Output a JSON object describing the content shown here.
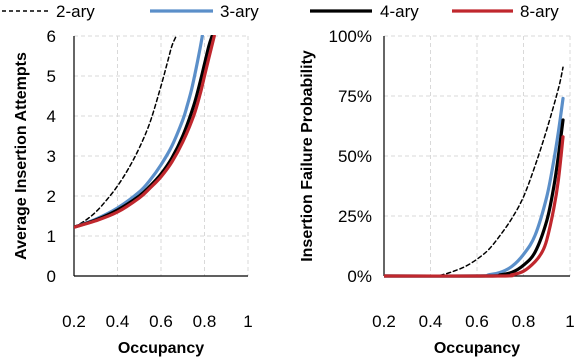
{
  "legend": [
    {
      "name": "2-ary",
      "color": "#000000",
      "dash": true
    },
    {
      "name": "3-ary",
      "color": "#5B8FC9",
      "dash": false
    },
    {
      "name": "4-ary",
      "color": "#000000",
      "dash": false
    },
    {
      "name": "8-ary",
      "color": "#C0272D",
      "dash": false
    }
  ],
  "chart_data": [
    {
      "type": "line",
      "xlabel": "Occupancy",
      "ylabel": "Average Insertion Attempts",
      "xlim": [
        0.2,
        1
      ],
      "ylim": [
        0,
        6
      ],
      "x_ticks": [
        "0.2",
        "0.4",
        "0.6",
        "0.8",
        "1"
      ],
      "y_ticks": [
        "0",
        "1",
        "2",
        "3",
        "4",
        "5",
        "6"
      ],
      "grid": true,
      "series": [
        {
          "name": "2-ary",
          "x": [
            0.2,
            0.25,
            0.3,
            0.35,
            0.4,
            0.45,
            0.5,
            0.55,
            0.6,
            0.63,
            0.65,
            0.67
          ],
          "y": [
            1.22,
            1.38,
            1.6,
            1.9,
            2.25,
            2.68,
            3.2,
            3.85,
            4.75,
            5.35,
            5.75,
            6.0
          ]
        },
        {
          "name": "3-ary",
          "x": [
            0.2,
            0.3,
            0.4,
            0.5,
            0.55,
            0.6,
            0.65,
            0.7,
            0.72,
            0.74,
            0.76,
            0.78,
            0.79
          ],
          "y": [
            1.22,
            1.42,
            1.7,
            2.1,
            2.4,
            2.78,
            3.25,
            3.9,
            4.25,
            4.65,
            5.15,
            5.7,
            6.0
          ]
        },
        {
          "name": "4-ary",
          "x": [
            0.2,
            0.3,
            0.4,
            0.5,
            0.55,
            0.6,
            0.65,
            0.7,
            0.75,
            0.78,
            0.8,
            0.82,
            0.835
          ],
          "y": [
            1.22,
            1.4,
            1.65,
            2.0,
            2.25,
            2.55,
            2.95,
            3.5,
            4.25,
            4.85,
            5.3,
            5.75,
            6.0
          ]
        },
        {
          "name": "8-ary",
          "x": [
            0.2,
            0.3,
            0.4,
            0.5,
            0.55,
            0.6,
            0.65,
            0.7,
            0.75,
            0.78,
            0.8,
            0.82,
            0.845
          ],
          "y": [
            1.22,
            1.38,
            1.6,
            1.95,
            2.2,
            2.48,
            2.85,
            3.35,
            4.0,
            4.55,
            5.0,
            5.45,
            6.0
          ]
        }
      ]
    },
    {
      "type": "line",
      "xlabel": "Occupancy",
      "ylabel": "Insertion Failure Probability",
      "xlim": [
        0.2,
        1
      ],
      "ylim": [
        0,
        100
      ],
      "x_ticks": [
        "0.2",
        "0.4",
        "0.6",
        "0.8",
        "1"
      ],
      "y_ticks": [
        "0%",
        "25%",
        "50%",
        "75%",
        "100%"
      ],
      "grid": true,
      "series": [
        {
          "name": "2-ary",
          "x": [
            0.2,
            0.4,
            0.45,
            0.5,
            0.55,
            0.6,
            0.65,
            0.7,
            0.75,
            0.8,
            0.85,
            0.9,
            0.95,
            0.97
          ],
          "y": [
            0,
            0,
            0.5,
            2,
            4,
            7,
            11,
            17,
            24,
            33,
            46,
            61,
            78,
            87
          ]
        },
        {
          "name": "3-ary",
          "x": [
            0.2,
            0.6,
            0.65,
            0.7,
            0.75,
            0.8,
            0.85,
            0.9,
            0.93,
            0.95,
            0.97
          ],
          "y": [
            0,
            0,
            0.5,
            1.5,
            4,
            9,
            17,
            33,
            48,
            60,
            74
          ]
        },
        {
          "name": "4-ary",
          "x": [
            0.2,
            0.65,
            0.7,
            0.75,
            0.8,
            0.85,
            0.9,
            0.93,
            0.95,
            0.97
          ],
          "y": [
            0,
            0,
            0.5,
            1.5,
            4.5,
            10,
            23,
            37,
            50,
            65
          ]
        },
        {
          "name": "8-ary",
          "x": [
            0.2,
            0.7,
            0.75,
            0.8,
            0.85,
            0.88,
            0.9,
            0.93,
            0.95,
            0.97
          ],
          "y": [
            0,
            0,
            0.5,
            2,
            6,
            10,
            15,
            28,
            40,
            58
          ]
        }
      ]
    }
  ]
}
